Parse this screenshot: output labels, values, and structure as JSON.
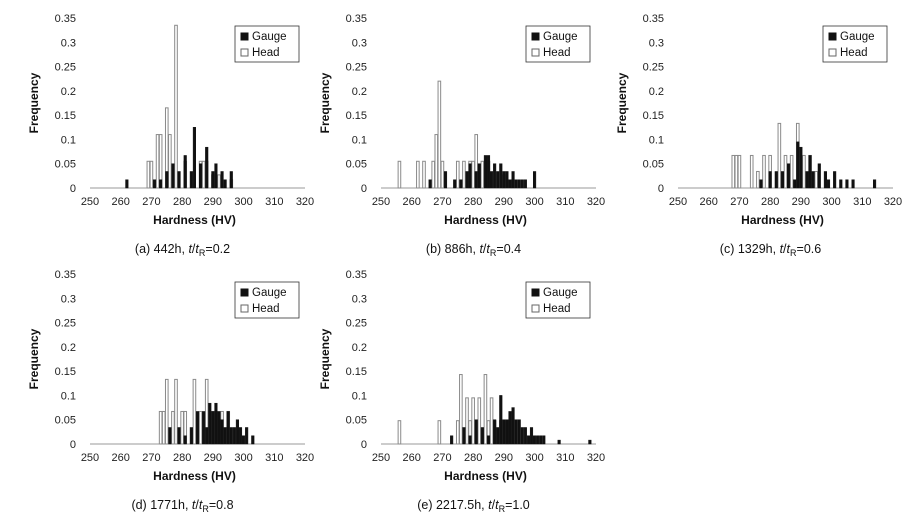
{
  "figure": {
    "x_axis_label": "Hardness (HV)",
    "y_axis_label": "Frequency",
    "legend": [
      "Gauge",
      "Head"
    ]
  },
  "chart_data": [
    {
      "type": "bar",
      "caption": {
        "prefix": "(a) 442h, ",
        "t": "t",
        "slash": "/",
        "tr": "t",
        "sub": "R",
        "value": "=0.2"
      },
      "xlabel": "Hardness (HV)",
      "ylabel": "Frequency",
      "xlim": [
        250,
        320
      ],
      "ylim": [
        0,
        0.35
      ],
      "xticks": [
        "250",
        "260",
        "270",
        "280",
        "290",
        "300",
        "310",
        "320"
      ],
      "yticks": [
        "0",
        "0.05",
        "0.1",
        "0.15",
        "0.2",
        "0.25",
        "0.3",
        "0.35"
      ],
      "legend_position": "top-right",
      "series": [
        {
          "name": "Gauge",
          "color": "#000000",
          "points": [
            [
              262,
              0.017
            ],
            [
              271,
              0.017
            ],
            [
              273,
              0.017
            ],
            [
              275,
              0.034
            ],
            [
              277,
              0.05
            ],
            [
              279,
              0.034
            ],
            [
              281,
              0.067
            ],
            [
              283,
              0.034
            ],
            [
              284,
              0.125
            ],
            [
              286,
              0.05
            ],
            [
              288,
              0.084
            ],
            [
              290,
              0.034
            ],
            [
              291,
              0.05
            ],
            [
              293,
              0.034
            ],
            [
              294,
              0.017
            ],
            [
              296,
              0.034
            ]
          ]
        },
        {
          "name": "Head",
          "color": "#ffffff",
          "points": [
            [
              269,
              0.055
            ],
            [
              270,
              0.055
            ],
            [
              272,
              0.11
            ],
            [
              273,
              0.11
            ],
            [
              275,
              0.165
            ],
            [
              276,
              0.11
            ],
            [
              278,
              0.335
            ],
            [
              281,
              0.055
            ],
            [
              286,
              0.055
            ],
            [
              287,
              0.055
            ],
            [
              288,
              0.055
            ],
            [
              290,
              0.027
            ],
            [
              292,
              0.027
            ],
            [
              296,
              0.017
            ]
          ]
        }
      ]
    },
    {
      "type": "bar",
      "caption": {
        "prefix": "(b) 886h, ",
        "t": "t",
        "slash": "/",
        "tr": "t",
        "sub": "R",
        "value": "=0.4"
      },
      "xlabel": "Hardness (HV)",
      "ylabel": "Frequency",
      "xlim": [
        250,
        320
      ],
      "ylim": [
        0,
        0.35
      ],
      "xticks": [
        "250",
        "260",
        "270",
        "280",
        "290",
        "300",
        "310",
        "320"
      ],
      "yticks": [
        "0",
        "0.05",
        "0.1",
        "0.15",
        "0.2",
        "0.25",
        "0.3",
        "0.35"
      ],
      "legend_position": "top-right",
      "series": [
        {
          "name": "Gauge",
          "color": "#000000",
          "points": [
            [
              266,
              0.017
            ],
            [
              271,
              0.034
            ],
            [
              274,
              0.017
            ],
            [
              276,
              0.017
            ],
            [
              278,
              0.034
            ],
            [
              279,
              0.05
            ],
            [
              281,
              0.034
            ],
            [
              282,
              0.05
            ],
            [
              284,
              0.067
            ],
            [
              285,
              0.067
            ],
            [
              286,
              0.034
            ],
            [
              287,
              0.05
            ],
            [
              288,
              0.034
            ],
            [
              289,
              0.05
            ],
            [
              290,
              0.034
            ],
            [
              291,
              0.034
            ],
            [
              292,
              0.017
            ],
            [
              293,
              0.034
            ],
            [
              294,
              0.017
            ],
            [
              295,
              0.017
            ],
            [
              296,
              0.017
            ],
            [
              297,
              0.017
            ],
            [
              300,
              0.034
            ]
          ]
        },
        {
          "name": "Head",
          "color": "#ffffff",
          "points": [
            [
              256,
              0.055
            ],
            [
              262,
              0.055
            ],
            [
              264,
              0.055
            ],
            [
              267,
              0.055
            ],
            [
              268,
              0.11
            ],
            [
              269,
              0.22
            ],
            [
              270,
              0.055
            ],
            [
              275,
              0.055
            ],
            [
              277,
              0.055
            ],
            [
              279,
              0.055
            ],
            [
              280,
              0.055
            ],
            [
              281,
              0.11
            ],
            [
              283,
              0.055
            ],
            [
              285,
              0.055
            ],
            [
              290,
              0.027
            ]
          ]
        }
      ]
    },
    {
      "type": "bar",
      "caption": {
        "prefix": "(c) 1329h, ",
        "t": "t",
        "slash": "/",
        "tr": "t",
        "sub": "R",
        "value": "=0.6"
      },
      "xlabel": "Hardness (HV)",
      "ylabel": "Frequency",
      "xlim": [
        250,
        320
      ],
      "ylim": [
        0,
        0.35
      ],
      "xticks": [
        "250",
        "260",
        "270",
        "280",
        "290",
        "300",
        "310",
        "320"
      ],
      "yticks": [
        "0",
        "0.05",
        "0.1",
        "0.15",
        "0.2",
        "0.25",
        "0.3",
        "0.35"
      ],
      "legend_position": "top-right",
      "series": [
        {
          "name": "Gauge",
          "color": "#000000",
          "points": [
            [
              277,
              0.017
            ],
            [
              280,
              0.034
            ],
            [
              282,
              0.034
            ],
            [
              284,
              0.034
            ],
            [
              286,
              0.05
            ],
            [
              288,
              0.017
            ],
            [
              289,
              0.095
            ],
            [
              290,
              0.084
            ],
            [
              292,
              0.034
            ],
            [
              293,
              0.067
            ],
            [
              294,
              0.034
            ],
            [
              296,
              0.05
            ],
            [
              298,
              0.034
            ],
            [
              299,
              0.017
            ],
            [
              301,
              0.034
            ],
            [
              303,
              0.017
            ],
            [
              305,
              0.017
            ],
            [
              307,
              0.017
            ],
            [
              314,
              0.017
            ]
          ]
        },
        {
          "name": "Head",
          "color": "#ffffff",
          "points": [
            [
              268,
              0.067
            ],
            [
              269,
              0.067
            ],
            [
              270,
              0.067
            ],
            [
              274,
              0.067
            ],
            [
              276,
              0.034
            ],
            [
              278,
              0.067
            ],
            [
              280,
              0.067
            ],
            [
              283,
              0.133
            ],
            [
              285,
              0.067
            ],
            [
              287,
              0.067
            ],
            [
              289,
              0.133
            ],
            [
              291,
              0.067
            ],
            [
              293,
              0.067
            ],
            [
              295,
              0.034
            ]
          ]
        }
      ]
    },
    {
      "type": "bar",
      "caption": {
        "prefix": "(d) 1771h, ",
        "t": "t",
        "slash": "/",
        "tr": "t",
        "sub": "R",
        "value": "=0.8"
      },
      "xlabel": "Hardness (HV)",
      "ylabel": "Frequency",
      "xlim": [
        250,
        320
      ],
      "ylim": [
        0,
        0.35
      ],
      "xticks": [
        "250",
        "260",
        "270",
        "280",
        "290",
        "300",
        "310",
        "320"
      ],
      "yticks": [
        "0",
        "0.05",
        "0.1",
        "0.15",
        "0.2",
        "0.25",
        "0.3",
        "0.35"
      ],
      "legend_position": "top-right",
      "series": [
        {
          "name": "Gauge",
          "color": "#000000",
          "points": [
            [
              276,
              0.034
            ],
            [
              279,
              0.034
            ],
            [
              281,
              0.017
            ],
            [
              283,
              0.034
            ],
            [
              285,
              0.067
            ],
            [
              287,
              0.067
            ],
            [
              288,
              0.034
            ],
            [
              289,
              0.084
            ],
            [
              290,
              0.067
            ],
            [
              291,
              0.084
            ],
            [
              292,
              0.067
            ],
            [
              293,
              0.05
            ],
            [
              294,
              0.034
            ],
            [
              295,
              0.067
            ],
            [
              296,
              0.034
            ],
            [
              297,
              0.034
            ],
            [
              298,
              0.05
            ],
            [
              299,
              0.034
            ],
            [
              300,
              0.017
            ],
            [
              301,
              0.034
            ],
            [
              303,
              0.017
            ]
          ]
        },
        {
          "name": "Head",
          "color": "#ffffff",
          "points": [
            [
              273,
              0.067
            ],
            [
              274,
              0.067
            ],
            [
              275,
              0.133
            ],
            [
              277,
              0.067
            ],
            [
              278,
              0.133
            ],
            [
              280,
              0.067
            ],
            [
              281,
              0.067
            ],
            [
              284,
              0.133
            ],
            [
              286,
              0.067
            ],
            [
              288,
              0.133
            ],
            [
              290,
              0.067
            ],
            [
              293,
              0.067
            ],
            [
              295,
              0.067
            ]
          ]
        }
      ]
    },
    {
      "type": "bar",
      "caption": {
        "prefix": "(e) 2217.5h, ",
        "t": "t",
        "slash": "/",
        "tr": "t",
        "sub": "R",
        "value": "=1.0"
      },
      "xlabel": "Hardness (HV)",
      "ylabel": "Frequency",
      "xlim": [
        250,
        320
      ],
      "ylim": [
        0,
        0.35
      ],
      "xticks": [
        "250",
        "260",
        "270",
        "280",
        "290",
        "300",
        "310",
        "320"
      ],
      "yticks": [
        "0",
        "0.05",
        "0.1",
        "0.15",
        "0.2",
        "0.25",
        "0.3",
        "0.35"
      ],
      "legend_position": "top-right",
      "series": [
        {
          "name": "Gauge",
          "color": "#000000",
          "points": [
            [
              273,
              0.017
            ],
            [
              277,
              0.034
            ],
            [
              279,
              0.017
            ],
            [
              281,
              0.05
            ],
            [
              283,
              0.034
            ],
            [
              285,
              0.017
            ],
            [
              287,
              0.05
            ],
            [
              288,
              0.034
            ],
            [
              289,
              0.1
            ],
            [
              290,
              0.05
            ],
            [
              291,
              0.05
            ],
            [
              292,
              0.067
            ],
            [
              293,
              0.075
            ],
            [
              294,
              0.05
            ],
            [
              295,
              0.05
            ],
            [
              296,
              0.034
            ],
            [
              297,
              0.034
            ],
            [
              298,
              0.017
            ],
            [
              299,
              0.034
            ],
            [
              300,
              0.017
            ],
            [
              301,
              0.017
            ],
            [
              302,
              0.017
            ],
            [
              303,
              0.017
            ],
            [
              308,
              0.008
            ],
            [
              318,
              0.008
            ]
          ]
        },
        {
          "name": "Head",
          "color": "#ffffff",
          "points": [
            [
              256,
              0.048
            ],
            [
              269,
              0.048
            ],
            [
              275,
              0.048
            ],
            [
              276,
              0.143
            ],
            [
              278,
              0.095
            ],
            [
              279,
              0.048
            ],
            [
              280,
              0.095
            ],
            [
              281,
              0.048
            ],
            [
              282,
              0.095
            ],
            [
              284,
              0.143
            ],
            [
              285,
              0.048
            ],
            [
              286,
              0.095
            ],
            [
              287,
              0.048
            ],
            [
              289,
              0.048
            ],
            [
              291,
              0.048
            ]
          ]
        }
      ]
    }
  ]
}
